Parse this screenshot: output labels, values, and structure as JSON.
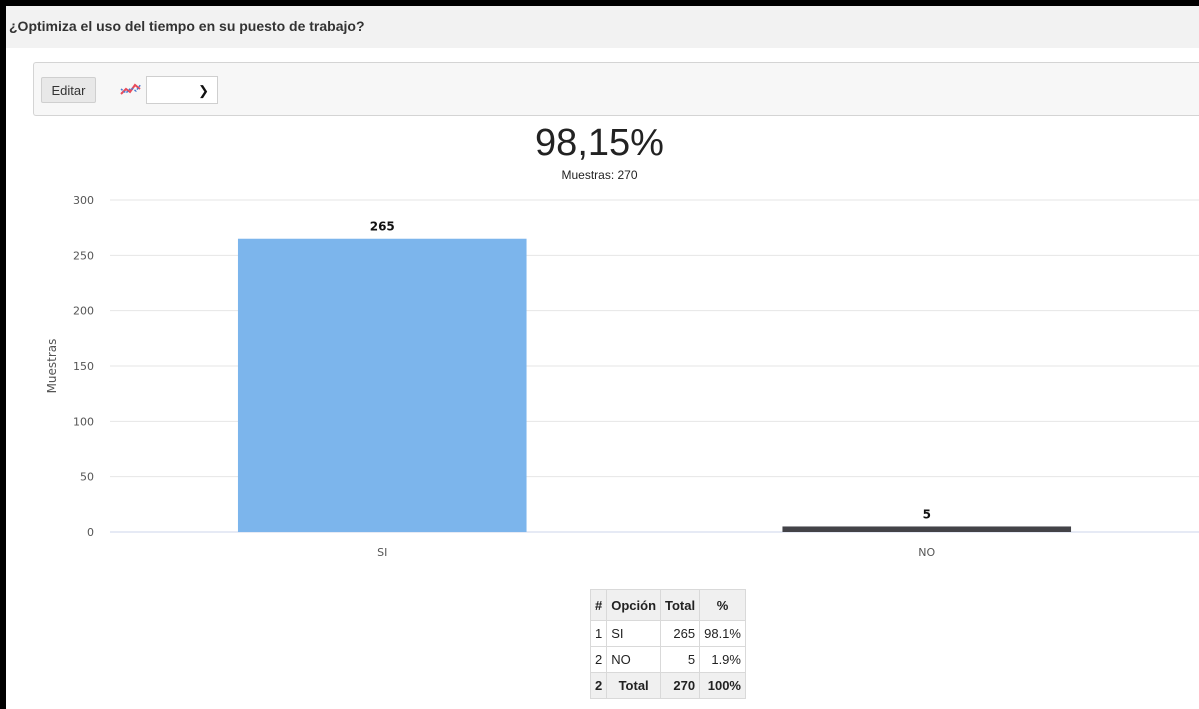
{
  "question": "¿Optimiza el uso del tiempo en su puesto de trabajo?",
  "toolbar": {
    "edit_label": "Editar",
    "chart_type_icon": "line-chart-icon",
    "chart_select_value": ""
  },
  "summary": {
    "value": "98,15%",
    "samples_label": "Muestras: 270"
  },
  "chart_data": {
    "type": "bar",
    "categories": [
      "SI",
      "NO"
    ],
    "values": [
      265,
      5
    ],
    "colors": [
      "#7cb5ec",
      "#434348"
    ],
    "data_labels": [
      "265",
      "5"
    ],
    "ylabel": "Muestras",
    "xlabel": "",
    "yticks": [
      "0",
      "50",
      "100",
      "150",
      "200",
      "250",
      "300"
    ],
    "ylim": [
      0,
      300
    ],
    "grid": true
  },
  "table": {
    "headers": [
      "#",
      "Opción",
      "Total",
      "%"
    ],
    "rows": [
      [
        "1",
        "SI",
        "265",
        "98.1%"
      ],
      [
        "2",
        "NO",
        "5",
        "1.9%"
      ]
    ],
    "total": [
      "2",
      "Total",
      "270",
      "100%"
    ]
  }
}
